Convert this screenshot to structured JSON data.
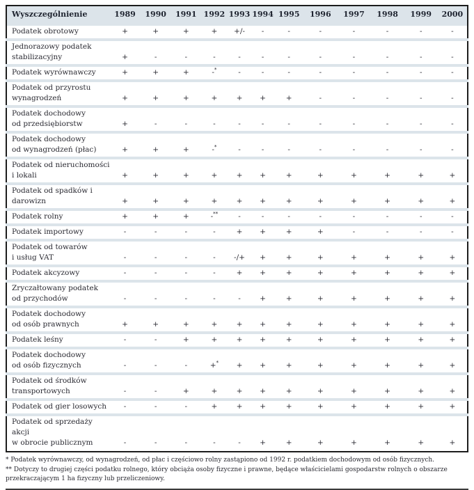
{
  "table": {
    "header": {
      "label": "Wyszczególnienie",
      "years": [
        "1989",
        "1990",
        "1991",
        "1992",
        "1993",
        "1994",
        "1995",
        "1996",
        "1997",
        "1998",
        "1999",
        "2000"
      ]
    },
    "rows": [
      {
        "label": "Podatek obrotowy",
        "values": [
          "+",
          "+",
          "+",
          "+",
          "+/-",
          "-",
          "-",
          "-",
          "-",
          "-",
          "-",
          "-"
        ]
      },
      {
        "label": "Jednorazowy podatek\nstabilizacyjny",
        "values": [
          "+",
          "-",
          "-",
          "-",
          "-",
          "-",
          "-",
          "-",
          "-",
          "-",
          "-",
          "-"
        ]
      },
      {
        "label": "Podatek wyrównawczy",
        "values": [
          "+",
          "+",
          "+",
          "-*",
          "-",
          "-",
          "-",
          "-",
          "-",
          "-",
          "-",
          "-"
        ]
      },
      {
        "label": "Podatek od przyrostu\nwynagrodzeń",
        "values": [
          "+",
          "+",
          "+",
          "+",
          "+",
          "+",
          "+",
          "-",
          "-",
          "-",
          "-",
          "-"
        ]
      },
      {
        "label": "Podatek dochodowy\nod przedsiębiorstw",
        "values": [
          "+",
          "-",
          "-",
          "-",
          "-",
          "-",
          "-",
          "-",
          "-",
          "-",
          "-",
          "-"
        ]
      },
      {
        "label": "Podatek dochodowy\nod wynagrodzeń (płac)",
        "values": [
          "+",
          "+",
          "+",
          "-*",
          "-",
          "-",
          "-",
          "-",
          "-",
          "-",
          "-",
          "-"
        ]
      },
      {
        "label": "Podatek od nieruchomości\ni lokali",
        "values": [
          "+",
          "+",
          "+",
          "+",
          "+",
          "+",
          "+",
          "+",
          "+",
          "+",
          "+",
          "+"
        ]
      },
      {
        "label": "Podatek od spadków i darowizn",
        "values": [
          "+",
          "+",
          "+",
          "+",
          "+",
          "+",
          "+",
          "+",
          "+",
          "+",
          "+",
          "+"
        ]
      },
      {
        "label": "Podatek rolny",
        "values": [
          "+",
          "+",
          "+",
          "-**",
          "-",
          "-",
          "-",
          "-",
          "-",
          "-",
          "-",
          "-"
        ]
      },
      {
        "label": "Podatek importowy",
        "values": [
          "-",
          "-",
          "-",
          "-",
          "+",
          "+",
          "+",
          "+",
          "-",
          "-",
          "-",
          "-"
        ]
      },
      {
        "label": "Podatek od towarów\ni usług VAT",
        "values": [
          "-",
          "-",
          "-",
          "-",
          "-/+",
          "+",
          "+",
          "+",
          "+",
          "+",
          "+",
          "+"
        ]
      },
      {
        "label": "Podatek akcyzowy",
        "values": [
          "-",
          "-",
          "-",
          "-",
          "+",
          "+",
          "+",
          "+",
          "+",
          "+",
          "+",
          "+"
        ]
      },
      {
        "label": "Zryczałtowany podatek\nod przychodów",
        "values": [
          "-",
          "-",
          "-",
          "-",
          "-",
          "+",
          "+",
          "+",
          "+",
          "+",
          "+",
          "+"
        ]
      },
      {
        "label": "Podatek dochodowy\nod osób prawnych",
        "values": [
          "+",
          "+",
          "+",
          "+",
          "+",
          "+",
          "+",
          "+",
          "+",
          "+",
          "+",
          "+"
        ]
      },
      {
        "label": "Podatek leśny",
        "values": [
          "-",
          "-",
          "+",
          "+",
          "+",
          "+",
          "+",
          "+",
          "+",
          "+",
          "+",
          "+"
        ]
      },
      {
        "label": "Podatek dochodowy\nod osób fizycznych",
        "values": [
          "-",
          "-",
          "-",
          "+*",
          "+",
          "+",
          "+",
          "+",
          "+",
          "+",
          "+",
          "+"
        ]
      },
      {
        "label": "Podatek od środków\ntransportowych",
        "values": [
          "-",
          "-",
          "+",
          "+",
          "+",
          "+",
          "+",
          "+",
          "+",
          "+",
          "+",
          "+"
        ]
      },
      {
        "label": "Podatek od gier losowych",
        "values": [
          "-",
          "-",
          "-",
          "+",
          "+",
          "+",
          "+",
          "+",
          "+",
          "+",
          "+",
          "+"
        ]
      },
      {
        "label": "Podatek od sprzedaży akcji\nw obrocie publicznym",
        "values": [
          "-",
          "-",
          "-",
          "-",
          "-",
          "+",
          "+",
          "+",
          "+",
          "+",
          "+",
          "+"
        ]
      }
    ]
  },
  "footnotes": [
    "* Podatek wyrównawczy, od wynagrodzeń, od płac i częściowo rolny zastąpiono od 1992 r. podatkiem dochodowym od osób fizycznych.",
    "** Dotyczy to drugiej części podatku rolnego, który obciąża osoby fizyczne i prawne, będące właścicielami gospodarstw rolnych o obszarze przekraczającym 1 ha fizyczny lub przeliczeniowy."
  ],
  "colors": {
    "band": "#dce4ea",
    "border": "#1c1c1c",
    "text": "#2a2a32"
  }
}
